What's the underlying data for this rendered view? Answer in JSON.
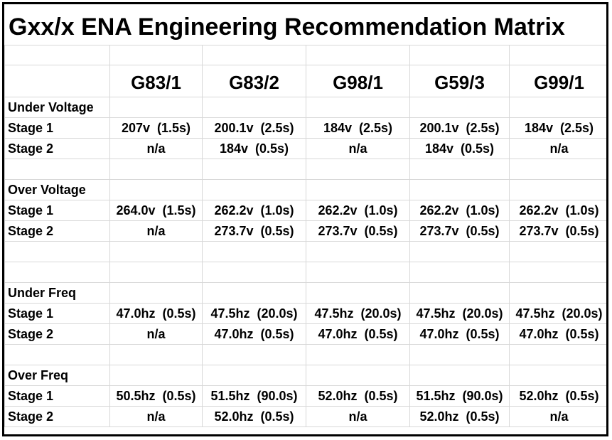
{
  "title": "Gxx/x ENA Engineering Recommendation Matrix",
  "columns": [
    "G83/1",
    "G83/2",
    "G98/1",
    "G59/3",
    "G99/1"
  ],
  "sections": [
    {
      "name": "Under Voltage",
      "rows": [
        {
          "label": "Stage 1",
          "values": [
            "207v  (1.5s)",
            "200.1v  (2.5s)",
            "184v  (2.5s)",
            "200.1v  (2.5s)",
            "184v  (2.5s)"
          ]
        },
        {
          "label": "Stage 2",
          "values": [
            "n/a",
            "184v  (0.5s)",
            "n/a",
            "184v  (0.5s)",
            "n/a"
          ]
        }
      ]
    },
    {
      "name": "Over Voltage",
      "rows": [
        {
          "label": "Stage 1",
          "values": [
            "264.0v  (1.5s)",
            "262.2v  (1.0s)",
            "262.2v  (1.0s)",
            "262.2v  (1.0s)",
            "262.2v  (1.0s)"
          ]
        },
        {
          "label": "Stage 2",
          "values": [
            "n/a",
            "273.7v  (0.5s)",
            "273.7v  (0.5s)",
            "273.7v  (0.5s)",
            "273.7v  (0.5s)"
          ]
        }
      ]
    },
    {
      "name": "Under Freq",
      "rows": [
        {
          "label": "Stage 1",
          "values": [
            "47.0hz  (0.5s)",
            "47.5hz  (20.0s)",
            "47.5hz  (20.0s)",
            "47.5hz  (20.0s)",
            "47.5hz  (20.0s)"
          ]
        },
        {
          "label": "Stage 2",
          "values": [
            "n/a",
            "47.0hz  (0.5s)",
            "47.0hz  (0.5s)",
            "47.0hz  (0.5s)",
            "47.0hz  (0.5s)"
          ]
        }
      ]
    },
    {
      "name": "Over Freq",
      "rows": [
        {
          "label": "Stage 1",
          "values": [
            "50.5hz  (0.5s)",
            "51.5hz  (90.0s)",
            "52.0hz  (0.5s)",
            "51.5hz  (90.0s)",
            "52.0hz  (0.5s)"
          ]
        },
        {
          "label": "Stage 2",
          "values": [
            "n/a",
            "52.0hz  (0.5s)",
            "n/a",
            "52.0hz  (0.5s)",
            "n/a"
          ]
        }
      ]
    }
  ]
}
